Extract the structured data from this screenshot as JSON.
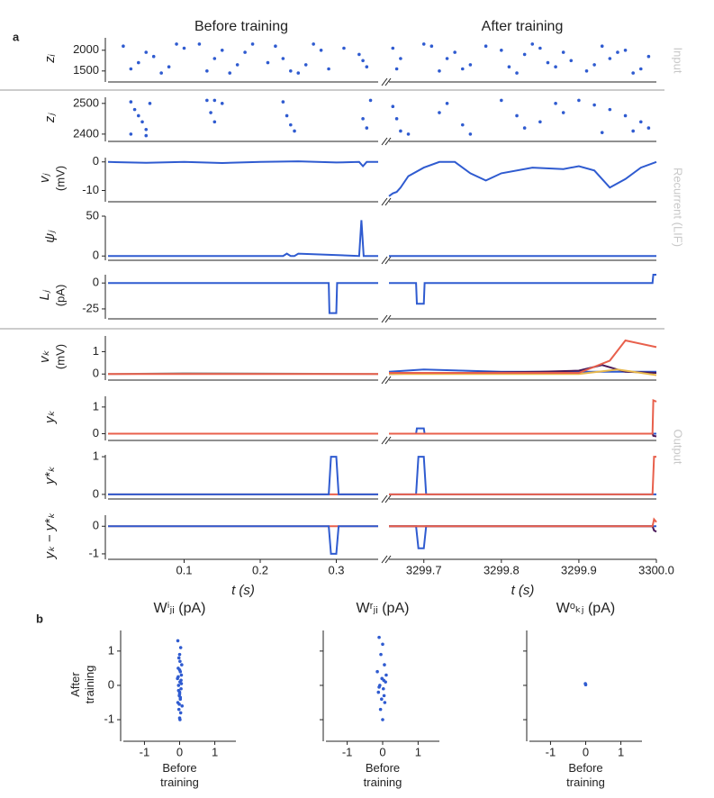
{
  "panel_labels": [
    "a",
    "b"
  ],
  "column_titles": [
    "Before training",
    "After training"
  ],
  "group_labels": [
    "Input",
    "Recurrent (LIF)",
    "Output"
  ],
  "chart_data": [
    {
      "type": "scatter",
      "ylabel": "zᵢ",
      "ylim": [
        1300,
        2300
      ],
      "yticks": [
        1500,
        2000
      ],
      "xlim": [
        0,
        0.355
      ],
      "color": "#2f5bd0",
      "x": [
        0.02,
        0.03,
        0.05,
        0.07,
        0.09,
        0.04,
        0.06,
        0.08,
        0.1,
        0.13,
        0.15,
        0.17,
        0.19,
        0.14,
        0.16,
        0.18,
        0.22,
        0.24,
        0.26,
        0.28,
        0.23,
        0.25,
        0.27,
        0.29,
        0.33,
        0.34,
        0.335,
        0.12,
        0.21,
        0.31
      ],
      "y": [
        2100,
        1550,
        1950,
        1450,
        2150,
        1700,
        1850,
        1600,
        2050,
        1500,
        2000,
        1650,
        2150,
        1800,
        1450,
        1950,
        2100,
        1500,
        1650,
        2000,
        1800,
        1450,
        2150,
        1550,
        1900,
        1600,
        1750,
        2150,
        1700,
        2050
      ]
    },
    {
      "type": "scatter",
      "ylim": [
        1300,
        2300
      ],
      "xlim": [
        3299.655,
        3300
      ],
      "color": "#2f5bd0",
      "x": [
        3299.66,
        3299.665,
        3299.67,
        3299.7,
        3299.72,
        3299.74,
        3299.76,
        3299.78,
        3299.73,
        3299.75,
        3299.8,
        3299.82,
        3299.84,
        3299.86,
        3299.81,
        3299.83,
        3299.85,
        3299.89,
        3299.91,
        3299.93,
        3299.95,
        3299.92,
        3299.94,
        3299.96,
        3299.98,
        3299.99,
        3299.97,
        3299.71,
        3299.88,
        3299.87
      ],
      "y": [
        2050,
        1550,
        1800,
        2150,
        1500,
        1950,
        1650,
        2100,
        1800,
        1550,
        2000,
        1450,
        2150,
        1700,
        1600,
        1900,
        2050,
        1750,
        1500,
        2100,
        1950,
        1650,
        1800,
        2000,
        1550,
        1850,
        1450,
        2100,
        1950,
        1600
      ]
    },
    {
      "type": "scatter",
      "ylabel": "zⱼ",
      "ylim": [
        2385,
        2520
      ],
      "yticks": [
        2400,
        2500
      ],
      "xlim": [
        0,
        0.355
      ],
      "color": "#2f5bd0",
      "x": [
        0.03,
        0.035,
        0.04,
        0.045,
        0.05,
        0.055,
        0.13,
        0.135,
        0.14,
        0.15,
        0.23,
        0.235,
        0.24,
        0.245,
        0.335,
        0.34,
        0.345,
        0.03,
        0.05,
        0.14
      ],
      "y": [
        2505,
        2480,
        2460,
        2440,
        2415,
        2500,
        2510,
        2470,
        2440,
        2500,
        2505,
        2460,
        2430,
        2410,
        2450,
        2420,
        2510,
        2400,
        2395,
        2510
      ]
    },
    {
      "type": "scatter",
      "ylim": [
        2385,
        2520
      ],
      "xlim": [
        3299.655,
        3300
      ],
      "color": "#2f5bd0",
      "x": [
        3299.66,
        3299.665,
        3299.67,
        3299.68,
        3299.72,
        3299.73,
        3299.75,
        3299.76,
        3299.8,
        3299.82,
        3299.83,
        3299.85,
        3299.87,
        3299.88,
        3299.9,
        3299.92,
        3299.94,
        3299.96,
        3299.98,
        3299.99,
        3299.93,
        3299.97
      ],
      "y": [
        2490,
        2450,
        2410,
        2400,
        2470,
        2500,
        2430,
        2400,
        2510,
        2460,
        2420,
        2440,
        2500,
        2470,
        2510,
        2495,
        2480,
        2460,
        2440,
        2420,
        2405,
        2410
      ]
    },
    {
      "type": "line",
      "ylabel": "vⱼ",
      "ylabel_unit": "(mV)",
      "ylim": [
        -13,
        1.5
      ],
      "yticks": [
        -10,
        0
      ],
      "xlim": [
        0,
        0.355
      ],
      "series": [
        {
          "color": "#2f5bd0",
          "x": [
            0,
            0.05,
            0.1,
            0.15,
            0.2,
            0.25,
            0.3,
            0.33,
            0.335,
            0.34,
            0.355
          ],
          "values": [
            0,
            -0.3,
            0,
            -0.4,
            0,
            0.2,
            -0.2,
            0,
            -1.5,
            0,
            0
          ]
        }
      ]
    },
    {
      "type": "line",
      "ylim": [
        -13,
        1.5
      ],
      "xlim": [
        3299.655,
        3300
      ],
      "series": [
        {
          "color": "#2f5bd0",
          "x": [
            3299.655,
            3299.66,
            3299.665,
            3299.67,
            3299.68,
            3299.7,
            3299.72,
            3299.74,
            3299.76,
            3299.78,
            3299.8,
            3299.84,
            3299.88,
            3299.9,
            3299.92,
            3299.94,
            3299.96,
            3299.98,
            3300
          ],
          "values": [
            -12,
            -11,
            -10.5,
            -9,
            -5,
            -2,
            0,
            0,
            -4,
            -6.5,
            -4,
            -2,
            -2.5,
            -1.5,
            -3,
            -9,
            -6,
            -2,
            0
          ]
        }
      ]
    },
    {
      "type": "line",
      "ylabel": "ψⱼ",
      "ylim": [
        -2,
        50
      ],
      "yticks": [
        0,
        50
      ],
      "xlim": [
        0,
        0.355
      ],
      "series": [
        {
          "color": "#2f5bd0",
          "x": [
            0,
            0.23,
            0.235,
            0.24,
            0.245,
            0.25,
            0.33,
            0.333,
            0.336,
            0.355
          ],
          "values": [
            0,
            0,
            3,
            0,
            0,
            3,
            0,
            45,
            0,
            0
          ]
        }
      ]
    },
    {
      "type": "line",
      "ylim": [
        -2,
        50
      ],
      "xlim": [
        3299.655,
        3300
      ],
      "series": [
        {
          "color": "#2f5bd0",
          "x": [
            3299.655,
            3300
          ],
          "values": [
            0,
            0
          ]
        }
      ]
    },
    {
      "type": "line",
      "ylabel": "Lⱼ",
      "ylabel_unit": "(pA)",
      "ylim": [
        -32,
        8
      ],
      "yticks": [
        -25,
        0
      ],
      "xlim": [
        0,
        0.355
      ],
      "series": [
        {
          "color": "#2f5bd0",
          "x": [
            0,
            0.29,
            0.291,
            0.3,
            0.301,
            0.355
          ],
          "values": [
            0,
            0,
            -29,
            -29,
            0,
            0
          ]
        }
      ]
    },
    {
      "type": "line",
      "ylim": [
        -32,
        8
      ],
      "xlim": [
        3299.655,
        3300
      ],
      "series": [
        {
          "color": "#2f5bd0",
          "x": [
            3299.655,
            3299.69,
            3299.691,
            3299.7,
            3299.701,
            3299.995,
            3299.996,
            3300
          ],
          "values": [
            0,
            0,
            -20,
            -20,
            0,
            0,
            8,
            8
          ]
        }
      ]
    },
    {
      "type": "line",
      "ylabel": "vₖ",
      "ylabel_unit": "(mV)",
      "ylim": [
        -0.15,
        1.7
      ],
      "yticks": [
        0,
        1
      ],
      "xlim": [
        0,
        0.355
      ],
      "series": [
        {
          "color": "#888888",
          "x": [
            0,
            0.1,
            0.2,
            0.355
          ],
          "values": [
            0,
            0.03,
            0.02,
            0
          ]
        },
        {
          "color": "#e8604c",
          "x": [
            0,
            0.355
          ],
          "values": [
            0,
            0
          ]
        }
      ]
    },
    {
      "type": "line",
      "ylim": [
        -0.15,
        1.7
      ],
      "xlim": [
        3299.655,
        3300
      ],
      "series": [
        {
          "color": "#2f5bd0",
          "x": [
            3299.655,
            3299.7,
            3299.75,
            3299.8,
            3299.85,
            3299.9,
            3300
          ],
          "values": [
            0.1,
            0.2,
            0.15,
            0.1,
            0.1,
            0.1,
            0.1
          ]
        },
        {
          "color": "#4a1a5a",
          "x": [
            3299.655,
            3299.75,
            3299.85,
            3299.9,
            3299.93,
            3299.96,
            3300
          ],
          "values": [
            0,
            0.05,
            0.1,
            0.15,
            0.4,
            0.1,
            0.05
          ]
        },
        {
          "color": "#e8b84c",
          "x": [
            3299.655,
            3299.9,
            3299.95,
            3300
          ],
          "values": [
            0,
            0,
            0.2,
            -0.05
          ]
        },
        {
          "color": "#e8604c",
          "x": [
            3299.655,
            3299.9,
            3299.94,
            3299.96,
            3300
          ],
          "values": [
            0.05,
            0.05,
            0.6,
            1.5,
            1.2
          ]
        }
      ]
    },
    {
      "type": "line",
      "ylabel": "yₖ",
      "ylim": [
        -0.15,
        1.4
      ],
      "yticks": [
        0,
        1
      ],
      "xlim": [
        0,
        0.355
      ],
      "series": [
        {
          "color": "#e8604c",
          "x": [
            0,
            0.355
          ],
          "values": [
            0,
            0
          ]
        }
      ]
    },
    {
      "type": "line",
      "ylim": [
        -0.15,
        1.4
      ],
      "xlim": [
        3299.655,
        3300
      ],
      "series": [
        {
          "color": "#2f5bd0",
          "x": [
            3299.655,
            3299.69,
            3299.691,
            3299.7,
            3299.701,
            3300
          ],
          "values": [
            0,
            0,
            0.2,
            0.2,
            0,
            0
          ]
        },
        {
          "color": "#4a1a5a",
          "x": [
            3299.655,
            3299.995,
            3299.996,
            3300
          ],
          "values": [
            0,
            0,
            -0.08,
            -0.1
          ]
        },
        {
          "color": "#e8604c",
          "x": [
            3299.655,
            3299.995,
            3299.996,
            3300
          ],
          "values": [
            0,
            0,
            1.25,
            1.2
          ]
        }
      ]
    },
    {
      "type": "line",
      "ylabel": "y*ₖ",
      "ylim": [
        -0.05,
        1.05
      ],
      "yticks": [
        0,
        1
      ],
      "xlim": [
        0,
        0.355
      ],
      "series": [
        {
          "color": "#e8604c",
          "x": [
            0,
            0.355
          ],
          "values": [
            0,
            0
          ]
        },
        {
          "color": "#2f5bd0",
          "x": [
            0,
            0.29,
            0.293,
            0.3,
            0.303,
            0.355
          ],
          "values": [
            0,
            0,
            1,
            1,
            0,
            0
          ]
        }
      ]
    },
    {
      "type": "line",
      "ylim": [
        -0.05,
        1.05
      ],
      "xlim": [
        3299.655,
        3300
      ],
      "series": [
        {
          "color": "#2f5bd0",
          "x": [
            3299.655,
            3299.69,
            3299.693,
            3299.7,
            3299.703,
            3300
          ],
          "values": [
            0,
            0,
            1,
            1,
            0,
            0
          ]
        },
        {
          "color": "#e8604c",
          "x": [
            3299.655,
            3299.995,
            3299.997,
            3300
          ],
          "values": [
            0,
            0,
            1,
            1
          ]
        }
      ]
    },
    {
      "type": "line",
      "ylabel": "yₖ − y*ₖ",
      "ylim": [
        -1.1,
        0.4
      ],
      "yticks": [
        -1,
        0
      ],
      "xlim": [
        0,
        0.355
      ],
      "xticks": [
        0.1,
        0.2,
        0.3
      ],
      "xlabel": "t (s)",
      "series": [
        {
          "color": "#e8604c",
          "x": [
            0,
            0.355
          ],
          "values": [
            0,
            0
          ]
        },
        {
          "color": "#2f5bd0",
          "x": [
            0,
            0.29,
            0.293,
            0.3,
            0.303,
            0.355
          ],
          "values": [
            0,
            0,
            -1,
            -1,
            0,
            0
          ]
        }
      ]
    },
    {
      "type": "line",
      "ylim": [
        -1.1,
        0.4
      ],
      "xlim": [
        3299.655,
        3300
      ],
      "xticks": [
        3299.7,
        3299.8,
        3299.9,
        {
          "value": 3300,
          "label": "3300.0"
        }
      ],
      "xlabel": "t (s)",
      "series": [
        {
          "color": "#2f5bd0",
          "x": [
            3299.655,
            3299.69,
            3299.693,
            3299.7,
            3299.703,
            3300
          ],
          "values": [
            0,
            0,
            -0.8,
            -0.8,
            0,
            0
          ]
        },
        {
          "color": "#4a1a5a",
          "x": [
            3299.655,
            3299.995,
            3299.997,
            3300
          ],
          "values": [
            0,
            0,
            -0.15,
            -0.2
          ]
        },
        {
          "color": "#e8604c",
          "x": [
            3299.655,
            3299.995,
            3299.997,
            3300
          ],
          "values": [
            0,
            0,
            0.25,
            0.15
          ]
        }
      ]
    },
    {
      "type": "scatter",
      "title": "Wⁱⱼᵢ (pA)",
      "ylabel": "After training",
      "xlabel": "Before training",
      "xlim": [
        -1.6,
        1.6
      ],
      "xticks": [
        -1,
        0,
        1
      ],
      "ylim": [
        -1.55,
        1.6
      ],
      "yticks": [
        -1,
        0,
        1
      ],
      "color": "#2f5bd0",
      "x": [
        -0.05,
        0.03,
        0.0,
        -0.02,
        0.06,
        -0.04,
        0.02,
        0.05,
        -0.06,
        0.01,
        -0.03,
        0.04,
        0.0,
        -0.01,
        0.02,
        -0.05,
        0.07,
        -0.02,
        0.03,
        0.0,
        0.01,
        -0.04,
        0.05,
        -0.03,
        0.02,
        0.0,
        -0.01,
        0.04,
        0.0,
        0.01
      ],
      "y": [
        1.3,
        1.1,
        0.9,
        0.8,
        0.6,
        0.5,
        0.4,
        0.3,
        0.2,
        0.1,
        0.0,
        -0.1,
        -0.2,
        -0.3,
        -0.4,
        -0.5,
        -0.6,
        -0.7,
        -0.8,
        -0.95,
        0.7,
        0.25,
        0.05,
        -0.15,
        -0.35,
        0.45,
        -0.55,
        0.15,
        -0.25,
        -1.0
      ]
    },
    {
      "type": "scatter",
      "title": "Wʳⱼᵢ (pA)",
      "xlabel": "Before training",
      "xlim": [
        -1.6,
        1.6
      ],
      "xticks": [
        -1,
        0,
        1
      ],
      "ylim": [
        -1.55,
        1.6
      ],
      "yticks": [
        -1,
        0,
        1
      ],
      "color": "#2f5bd0",
      "x": [
        -0.1,
        0.0,
        -0.05,
        0.05,
        -0.15,
        0.1,
        -0.02,
        0.08,
        -0.08,
        0.02,
        -0.12,
        0.04,
        -0.03,
        0.06,
        -0.06,
        0.0,
        0.03,
        -0.1
      ],
      "y": [
        1.4,
        1.2,
        0.9,
        0.6,
        0.4,
        0.3,
        0.2,
        0.1,
        0.0,
        -0.1,
        -0.2,
        -0.3,
        -0.4,
        -0.5,
        -0.7,
        -1.0,
        0.15,
        -0.05
      ]
    },
    {
      "type": "scatter",
      "title": "Wᵒₖⱼ (pA)",
      "xlabel": "Before training",
      "xlim": [
        -1.6,
        1.6
      ],
      "xticks": [
        -1,
        0,
        1
      ],
      "ylim": [
        -1.55,
        1.6
      ],
      "yticks": [
        -1,
        0,
        1
      ],
      "color": "#2f5bd0",
      "x": [
        0,
        -0.01
      ],
      "y": [
        0.02,
        0.05
      ]
    }
  ]
}
